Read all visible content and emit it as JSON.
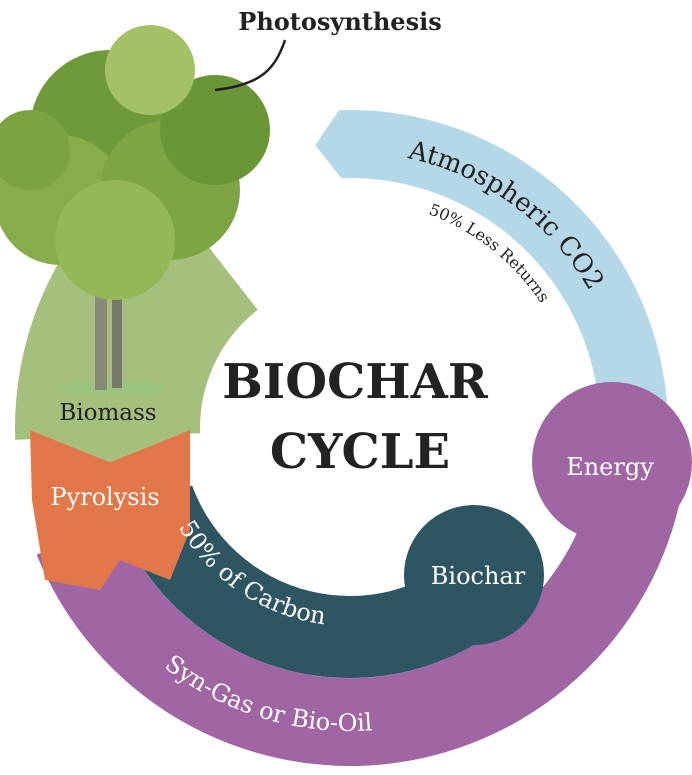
{
  "title": {
    "line1": "BIOCHAR",
    "line2": "CYCLE"
  },
  "labels": {
    "photosynthesis": "Photosynthesis",
    "atmospheric": "Atmospheric CO2",
    "less_returns": "50% Less Returns",
    "energy": "Energy",
    "biochar": "Biochar",
    "carbon": "50% of Carbon",
    "syngas": "Syn-Gas or Bio-Oil",
    "pyrolysis": "Pyrolysis",
    "biomass": "Biomass"
  }
}
